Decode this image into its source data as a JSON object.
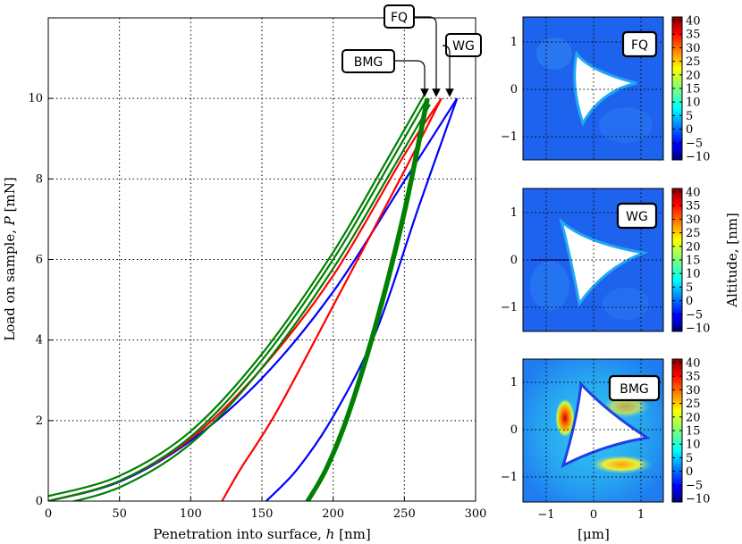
{
  "chart_data": [
    {
      "type": "line",
      "title": "",
      "xlabel_prefix": "Penetration into surface, ",
      "xlabel_var": "h",
      "xlabel_unit": " [nm]",
      "ylabel_prefix": "Load on sample, ",
      "ylabel_var": "P",
      "ylabel_unit": " [mN]",
      "xlim": [
        0,
        300
      ],
      "ylim": [
        0,
        12
      ],
      "xticks": [
        "0",
        "50",
        "100",
        "150",
        "200",
        "250",
        "300"
      ],
      "yticks": [
        "0",
        "2",
        "4",
        "6",
        "8",
        "10"
      ],
      "grid": true,
      "series": [
        {
          "name": "FQ",
          "color": "#ff0000",
          "loading": [
            [
              0,
              0
            ],
            [
              50,
              0.5
            ],
            [
              100,
              1.55
            ],
            [
              150,
              3.3
            ],
            [
              200,
              5.6
            ],
            [
              250,
              8.6
            ],
            [
              276,
              10
            ]
          ],
          "unloading": [
            [
              276,
              10
            ],
            [
              250,
              8.2
            ],
            [
              200,
              4.85
            ],
            [
              160,
              2.2
            ],
            [
              135,
              0.8
            ],
            [
              122,
              0
            ]
          ]
        },
        {
          "name": "WG",
          "color": "#0000ff",
          "loading": [
            [
              0,
              0
            ],
            [
              50,
              0.48
            ],
            [
              100,
              1.5
            ],
            [
              150,
              3.05
            ],
            [
              200,
              5.2
            ],
            [
              250,
              7.95
            ],
            [
              287,
              10
            ]
          ],
          "unloading": [
            [
              287,
              10
            ],
            [
              260,
              7.3
            ],
            [
              230,
              4.2
            ],
            [
              200,
              2.1
            ],
            [
              175,
              0.8
            ],
            [
              153,
              0
            ]
          ]
        },
        {
          "name": "BMG",
          "color": "#008000",
          "loading": [
            [
              0,
              0
            ],
            [
              50,
              0.5
            ],
            [
              100,
              1.6
            ],
            [
              150,
              3.5
            ],
            [
              200,
              6.0
            ],
            [
              240,
              8.4
            ],
            [
              266,
              10
            ]
          ],
          "unloading": [
            [
              266,
              10
            ],
            [
              250,
              7.2
            ],
            [
              230,
              4.4
            ],
            [
              210,
              2.1
            ],
            [
              195,
              0.8
            ],
            [
              182,
              0
            ]
          ]
        }
      ],
      "annotations": [
        {
          "text": "FQ",
          "target": [
            276,
            10
          ]
        },
        {
          "text": "WG",
          "target": [
            287,
            10
          ]
        },
        {
          "text": "BMG",
          "target": [
            266,
            10
          ]
        }
      ]
    },
    {
      "type": "heatmap",
      "title": "FQ",
      "xlim": [
        -1.5,
        1.5
      ],
      "ylim": [
        -1.5,
        1.5
      ],
      "yticks": [
        "−1",
        "0",
        "1"
      ],
      "colorbar_ticks": [
        "40",
        "35",
        "30",
        "25",
        "20",
        "15",
        "10",
        "5",
        "0",
        "−5",
        "−10"
      ]
    },
    {
      "type": "heatmap",
      "title": "WG",
      "xlim": [
        -1.5,
        1.5
      ],
      "ylim": [
        -1.5,
        1.5
      ],
      "yticks": [
        "−1",
        "0",
        "1"
      ],
      "colorbar_ticks": [
        "40",
        "35",
        "30",
        "25",
        "20",
        "15",
        "10",
        "5",
        "0",
        "−5",
        "−10"
      ],
      "colorbar_label": "Altitude, [nm]"
    },
    {
      "type": "heatmap",
      "title": "BMG",
      "xlim": [
        -1.5,
        1.5
      ],
      "ylim": [
        -1.5,
        1.5
      ],
      "xticks": [
        "−1",
        "0",
        "1"
      ],
      "yticks": [
        "−1",
        "0",
        "1"
      ],
      "xlabel": "[μm]",
      "colorbar_ticks": [
        "40",
        "35",
        "30",
        "25",
        "20",
        "15",
        "10",
        "5",
        "0",
        "−5",
        "−10"
      ]
    }
  ]
}
